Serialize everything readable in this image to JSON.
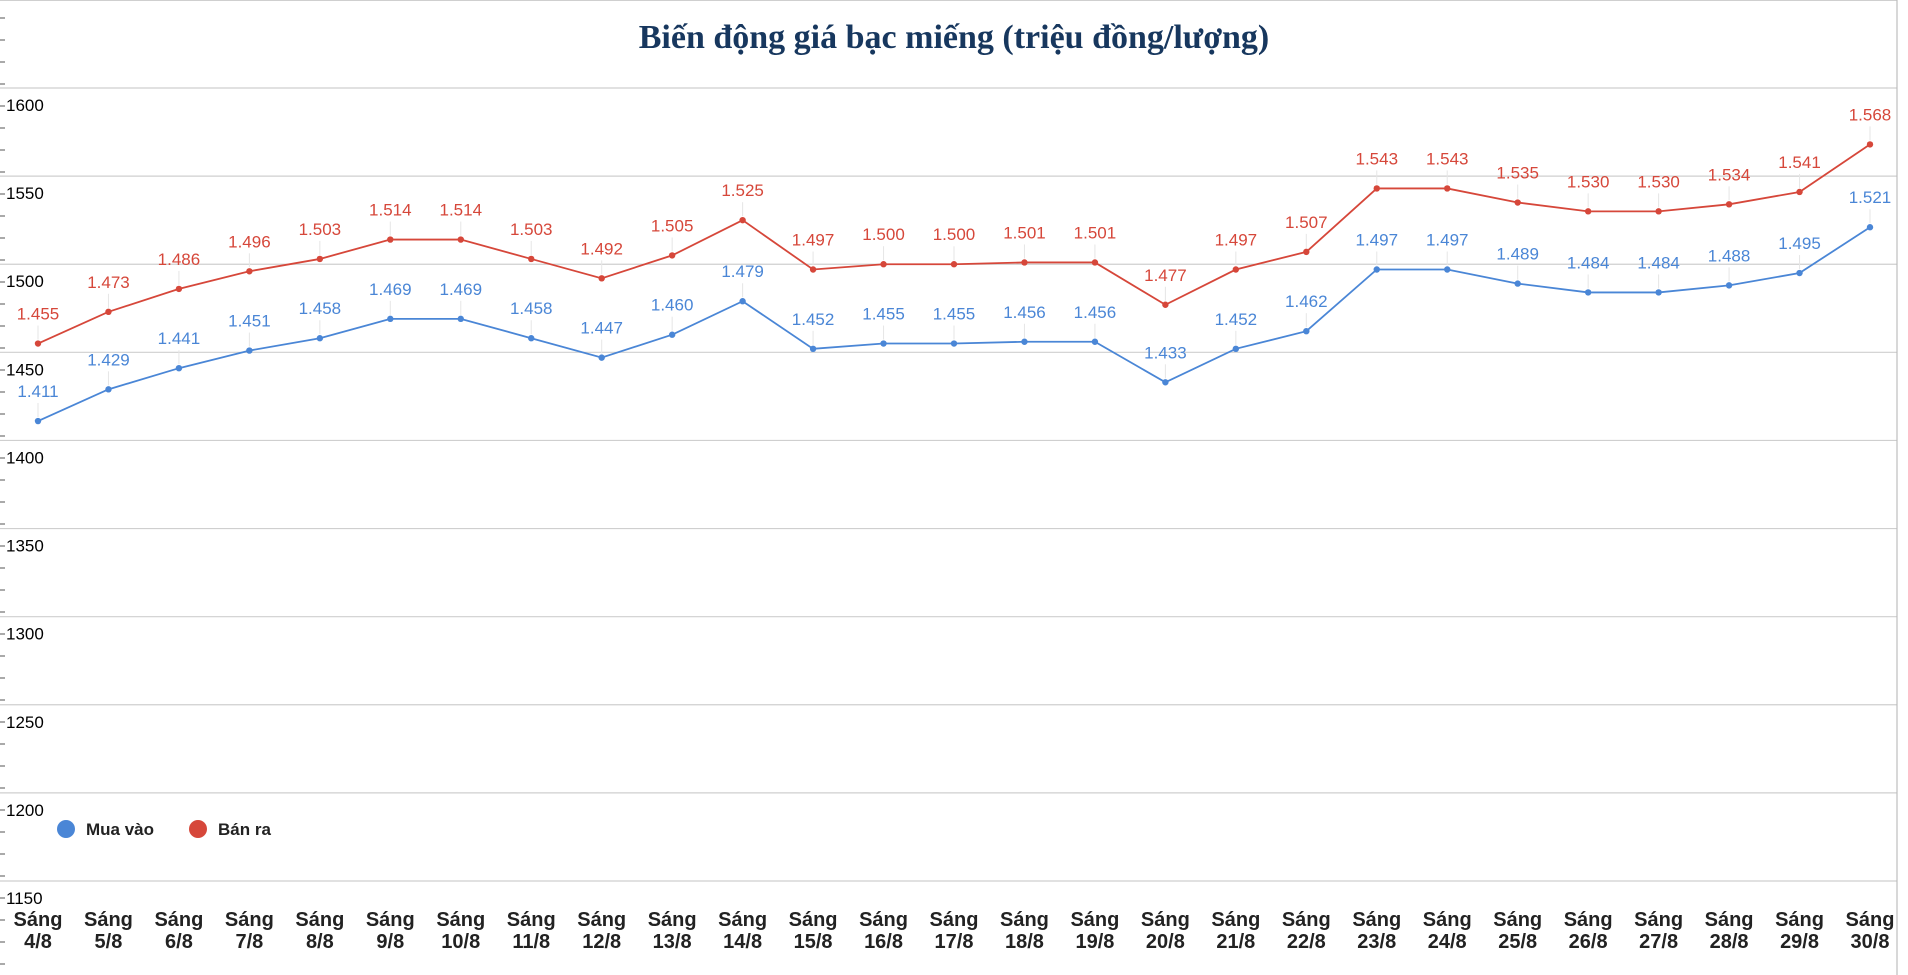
{
  "chart_data": {
    "type": "line",
    "title": "Biến động giá bạc miếng (triệu đồng/lượng)",
    "xlabel": "",
    "ylabel": "",
    "ylim": [
      1150,
      1600
    ],
    "yticks": [
      "1150",
      "1200",
      "1250",
      "1300",
      "1350",
      "1400",
      "1450",
      "1500",
      "1550",
      "1600"
    ],
    "grid": true,
    "legend_position": "bottom-left",
    "categories": [
      [
        "Sáng",
        "4/8"
      ],
      [
        "Sáng",
        "5/8"
      ],
      [
        "Sáng",
        "6/8"
      ],
      [
        "Sáng",
        "7/8"
      ],
      [
        "Sáng",
        "8/8"
      ],
      [
        "Sáng",
        "9/8"
      ],
      [
        "Sáng",
        "10/8"
      ],
      [
        "Sáng",
        "11/8"
      ],
      [
        "Sáng",
        "12/8"
      ],
      [
        "Sáng",
        "13/8"
      ],
      [
        "Sáng",
        "14/8"
      ],
      [
        "Sáng",
        "15/8"
      ],
      [
        "Sáng",
        "16/8"
      ],
      [
        "Sáng",
        "17/8"
      ],
      [
        "Sáng",
        "18/8"
      ],
      [
        "Sáng",
        "19/8"
      ],
      [
        "Sáng",
        "20/8"
      ],
      [
        "Sáng",
        "21/8"
      ],
      [
        "Sáng",
        "22/8"
      ],
      [
        "Sáng",
        "23/8"
      ],
      [
        "Sáng",
        "24/8"
      ],
      [
        "Sáng",
        "25/8"
      ],
      [
        "Sáng",
        "26/8"
      ],
      [
        "Sáng",
        "27/8"
      ],
      [
        "Sáng",
        "28/8"
      ],
      [
        "Sáng",
        "29/8"
      ],
      [
        "Sáng",
        "30/8"
      ]
    ],
    "series": [
      {
        "name": "Mua vào",
        "color": "#4a86d6",
        "values": [
          1411,
          1429,
          1441,
          1451,
          1458,
          1469,
          1469,
          1458,
          1447,
          1460,
          1479,
          1452,
          1455,
          1455,
          1456,
          1456,
          1433,
          1452,
          1462,
          1497,
          1497,
          1489,
          1484,
          1484,
          1488,
          1495,
          1521
        ],
        "labels": [
          "1.411",
          "1.429",
          "1.441",
          "1.451",
          "1.458",
          "1.469",
          "1.469",
          "1.458",
          "1.447",
          "1.460",
          "1.479",
          "1.452",
          "1.455",
          "1.455",
          "1.456",
          "1.456",
          "1.433",
          "1.452",
          "1.462",
          "1.497",
          "1.497",
          "1.489",
          "1.484",
          "1.484",
          "1.488",
          "1.495",
          "1.521"
        ]
      },
      {
        "name": "Bán ra",
        "color": "#d6473a",
        "values": [
          1455,
          1473,
          1486,
          1496,
          1503,
          1514,
          1514,
          1503,
          1492,
          1505,
          1525,
          1497,
          1500,
          1500,
          1501,
          1501,
          1477,
          1497,
          1507,
          1543,
          1543,
          1535,
          1530,
          1530,
          1534,
          1541,
          1568
        ],
        "labels": [
          "1.455",
          "1.473",
          "1.486",
          "1.496",
          "1.503",
          "1.514",
          "1.514",
          "1.503",
          "1.492",
          "1.505",
          "1.525",
          "1.497",
          "1.500",
          "1.500",
          "1.501",
          "1.501",
          "1.477",
          "1.497",
          "1.507",
          "1.543",
          "1.543",
          "1.535",
          "1.530",
          "1.530",
          "1.534",
          "1.541",
          "1.568"
        ]
      }
    ]
  }
}
